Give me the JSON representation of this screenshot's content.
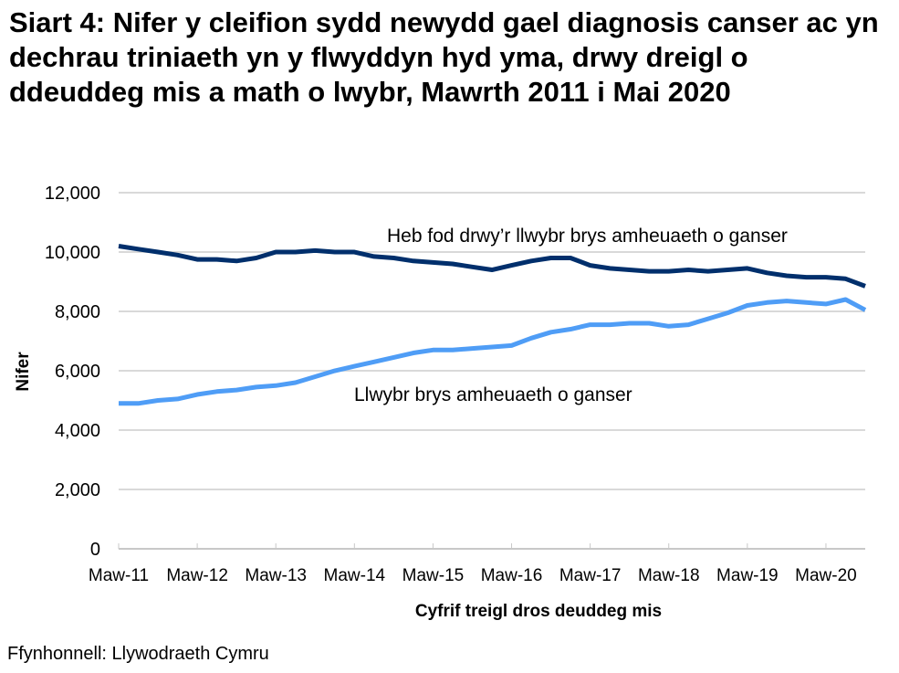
{
  "title": "Siart 4: Nifer y cleifion sydd newydd gael diagnosis canser ac yn dechrau triniaeth yn y flwyddyn hyd yma, drwy dreigl o ddeuddeg mis a math o lwybr, Mawrth 2011 i Mai 2020",
  "source": "Ffynhonnell: Llywodraeth Cymru",
  "chart_data": {
    "type": "line",
    "title": "Siart 4: Nifer y cleifion sydd newydd gael diagnosis canser ac yn dechrau triniaeth yn y flwyddyn hyd yma, drwy dreigl o ddeuddeg mis a math o lwybr, Mawrth 2011 i Mai 2020",
    "xlabel": "Cyfrif treigl dros deuddeg mis",
    "ylabel": "Nifer",
    "ylim": [
      0,
      12000
    ],
    "yticks": [
      0,
      2000,
      4000,
      6000,
      8000,
      10000,
      12000
    ],
    "ytick_labels": [
      "0",
      "2,000",
      "4,000",
      "6,000",
      "8,000",
      "10,000",
      "12,000"
    ],
    "xtick_labels": [
      "Maw-11",
      "Maw-12",
      "Maw-13",
      "Maw-14",
      "Maw-15",
      "Maw-16",
      "Maw-17",
      "Maw-18",
      "Maw-19",
      "Maw-20"
    ],
    "grid": "horizontal",
    "legend": "inline labels",
    "x": [
      "Maw-11",
      "Meh-11",
      "Med-11",
      "Rha-11",
      "Maw-12",
      "Meh-12",
      "Med-12",
      "Rha-12",
      "Maw-13",
      "Meh-13",
      "Med-13",
      "Rha-13",
      "Maw-14",
      "Meh-14",
      "Med-14",
      "Rha-14",
      "Maw-15",
      "Meh-15",
      "Med-15",
      "Rha-15",
      "Maw-16",
      "Meh-16",
      "Med-16",
      "Rha-16",
      "Maw-17",
      "Meh-17",
      "Med-17",
      "Rha-17",
      "Maw-18",
      "Meh-18",
      "Med-18",
      "Rha-18",
      "Maw-19",
      "Meh-19",
      "Med-19",
      "Rha-19",
      "Maw-20",
      "Ebr-20",
      "Mai-20"
    ],
    "series": [
      {
        "name": "Heb fod drwy’r llwybr brys amheuaeth o ganser",
        "color": "#002f6c",
        "values": [
          10200,
          10100,
          10000,
          9900,
          9750,
          9750,
          9700,
          9800,
          10000,
          10000,
          10050,
          10000,
          10000,
          9850,
          9800,
          9700,
          9650,
          9600,
          9500,
          9400,
          9550,
          9700,
          9800,
          9800,
          9550,
          9450,
          9400,
          9350,
          9350,
          9400,
          9350,
          9400,
          9450,
          9300,
          9200,
          9150,
          9150,
          9100,
          8850
        ]
      },
      {
        "name": "Llwybr brys amheuaeth o ganser",
        "color": "#4f9df6",
        "values": [
          4900,
          4900,
          5000,
          5050,
          5200,
          5300,
          5350,
          5450,
          5500,
          5600,
          5800,
          6000,
          6150,
          6300,
          6450,
          6600,
          6700,
          6700,
          6750,
          6800,
          6850,
          7100,
          7300,
          7400,
          7550,
          7550,
          7600,
          7600,
          7500,
          7550,
          7750,
          7950,
          8200,
          8300,
          8350,
          8300,
          8250,
          8400,
          8050
        ]
      }
    ]
  }
}
